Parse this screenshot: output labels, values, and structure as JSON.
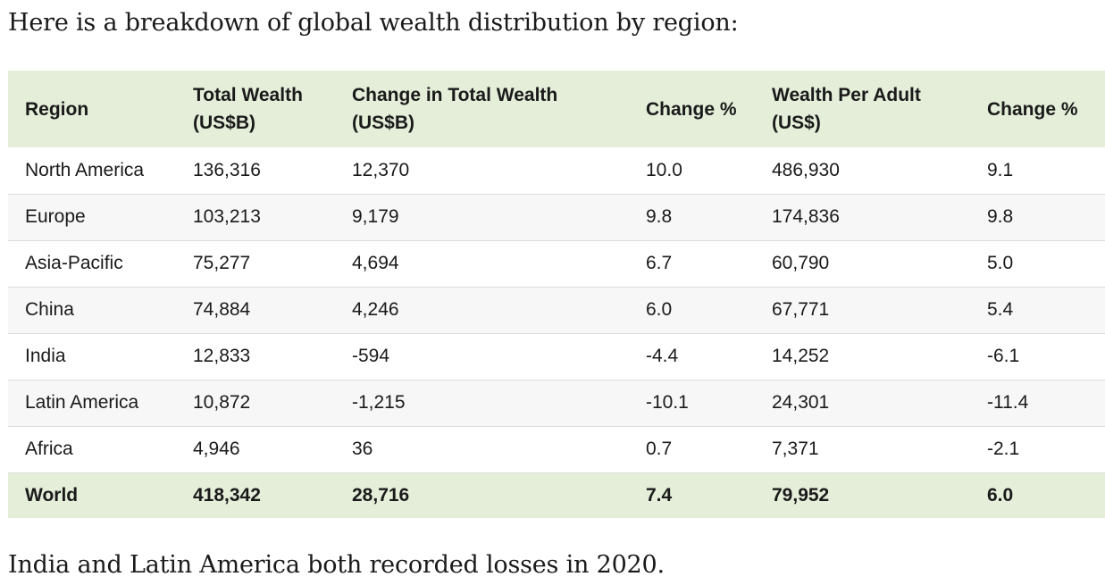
{
  "intro_text": "Here is a breakdown of global wealth distribution by region:",
  "outro_text": "India and Latin America both recorded losses in 2020.",
  "table": {
    "headers": [
      {
        "line1": "Region",
        "line2": ""
      },
      {
        "line1": "Total Wealth",
        "line2": "(US$B)"
      },
      {
        "line1": "Change in Total Wealth",
        "line2": "(US$B)"
      },
      {
        "line1": "Change %",
        "line2": ""
      },
      {
        "line1": "Wealth Per Adult",
        "line2": "(US$)"
      },
      {
        "line1": "Change %",
        "line2": ""
      }
    ],
    "rows": [
      [
        "North America",
        "136,316",
        "12,370",
        "10.0",
        "486,930",
        "9.1"
      ],
      [
        "Europe",
        "103,213",
        "9,179",
        "9.8",
        "174,836",
        "9.8"
      ],
      [
        "Asia-Pacific",
        "75,277",
        "4,694",
        "6.7",
        "60,790",
        "5.0"
      ],
      [
        "China",
        "74,884",
        "4,246",
        "6.0",
        "67,771",
        "5.4"
      ],
      [
        "India",
        "12,833",
        "-594",
        "-4.4",
        "14,252",
        "-6.1"
      ],
      [
        "Latin America",
        "10,872",
        "-1,215",
        "-10.1",
        "24,301",
        "-11.4"
      ],
      [
        "Africa",
        "4,946",
        "36",
        "0.7",
        "7,371",
        "-2.1"
      ]
    ],
    "total_row": [
      "World",
      "418,342",
      "28,716",
      "7.4",
      "79,952",
      "6.0"
    ]
  }
}
